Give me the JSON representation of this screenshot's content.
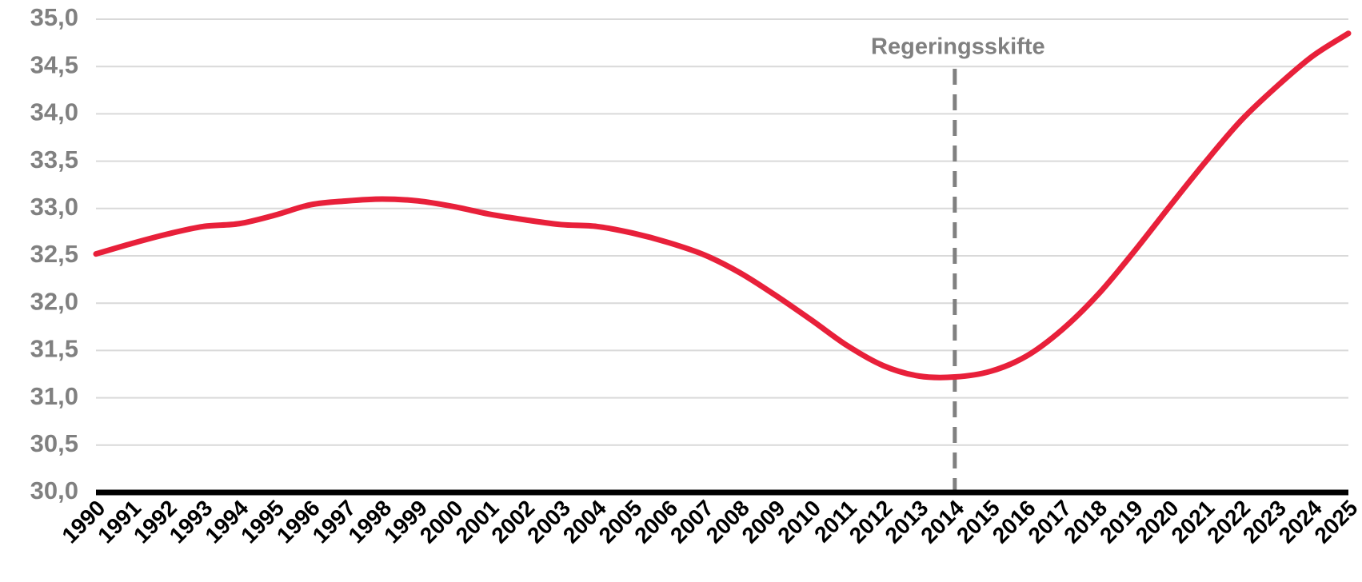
{
  "chart_data": {
    "type": "line",
    "categories": [
      "1990",
      "1991",
      "1992",
      "1993",
      "1994",
      "1995",
      "1996",
      "1997",
      "1998",
      "1999",
      "2000",
      "2001",
      "2002",
      "2003",
      "2004",
      "2005",
      "2006",
      "2007",
      "2008",
      "2009",
      "2010",
      "2011",
      "2012",
      "2013",
      "2014",
      "2015",
      "2016",
      "2017",
      "2018",
      "2019",
      "2020",
      "2021",
      "2022",
      "2023",
      "2024",
      "2025"
    ],
    "series": [
      {
        "color": "#e8203a",
        "values": [
          32.52,
          32.63,
          32.73,
          32.81,
          32.84,
          32.93,
          33.04,
          33.08,
          33.1,
          33.08,
          33.02,
          32.94,
          32.88,
          32.83,
          32.81,
          32.74,
          32.64,
          32.51,
          32.32,
          32.08,
          31.82,
          31.55,
          31.34,
          31.23,
          31.22,
          31.28,
          31.44,
          31.72,
          32.09,
          32.54,
          33.02,
          33.49,
          33.93,
          34.29,
          34.61,
          34.85
        ]
      }
    ],
    "ylim": [
      30,
      35
    ],
    "yticks": [
      {
        "value": 30,
        "label": "30,0"
      },
      {
        "value": 30.5,
        "label": "30,5"
      },
      {
        "value": 31,
        "label": "31,0"
      },
      {
        "value": 31.5,
        "label": "31,5"
      },
      {
        "value": 32,
        "label": "32,0"
      },
      {
        "value": 32.5,
        "label": "32,5"
      },
      {
        "value": 33,
        "label": "33,0"
      },
      {
        "value": 33.5,
        "label": "33,5"
      },
      {
        "value": 34,
        "label": "34,0"
      },
      {
        "value": 34.5,
        "label": "34,5"
      },
      {
        "value": 35,
        "label": "35,0"
      }
    ],
    "grid": true,
    "annotations": [
      {
        "text": "Regeringsskifte",
        "x": "2014"
      }
    ]
  }
}
